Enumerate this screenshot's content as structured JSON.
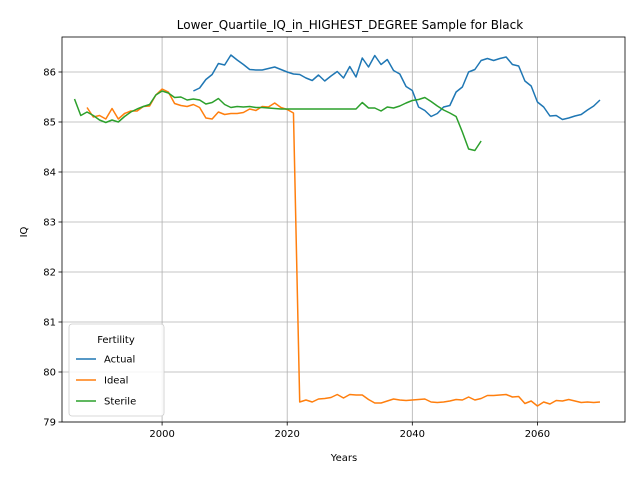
{
  "chart_data": {
    "type": "line",
    "title": "Lower_Quartile_IQ_in_HIGHEST_DEGREE Sample for Black",
    "xlabel": "Years",
    "ylabel": "IQ",
    "xlim": [
      1984,
      2074
    ],
    "ylim": [
      79.0,
      86.7
    ],
    "xticks": [
      2000,
      2020,
      2040,
      2060
    ],
    "yticks": [
      79,
      80,
      81,
      82,
      83,
      84,
      85,
      86
    ],
    "grid": true,
    "legend": {
      "title": "Fertility",
      "placement": "lower-left"
    },
    "series": [
      {
        "name": "Actual",
        "color": "#1f77b4",
        "x": [
          2005,
          2006,
          2007,
          2008,
          2009,
          2010,
          2011,
          2012,
          2013,
          2014,
          2015,
          2016,
          2017,
          2018,
          2019,
          2020,
          2021,
          2022,
          2023,
          2024,
          2025,
          2026,
          2027,
          2028,
          2029,
          2030,
          2031,
          2032,
          2033,
          2034,
          2035,
          2036,
          2037,
          2038,
          2039,
          2040,
          2041,
          2042,
          2043,
          2044,
          2045,
          2046,
          2047,
          2048,
          2049,
          2050,
          2051,
          2052,
          2053,
          2054,
          2055,
          2056,
          2057,
          2058,
          2059,
          2060,
          2061,
          2062,
          2063,
          2064,
          2065,
          2066,
          2067,
          2068,
          2069,
          2070
        ],
        "y": [
          85.62,
          85.68,
          85.85,
          85.95,
          86.17,
          86.14,
          86.34,
          86.24,
          86.15,
          86.05,
          86.04,
          86.04,
          86.07,
          86.1,
          86.05,
          86.0,
          85.96,
          85.95,
          85.88,
          85.83,
          85.94,
          85.82,
          85.92,
          86.01,
          85.88,
          86.11,
          85.9,
          86.28,
          86.1,
          86.33,
          86.15,
          86.25,
          86.03,
          85.96,
          85.71,
          85.63,
          85.3,
          85.23,
          85.11,
          85.17,
          85.3,
          85.33,
          85.6,
          85.7,
          86.0,
          86.05,
          86.23,
          86.27,
          86.23,
          86.27,
          86.3,
          86.15,
          86.12,
          85.82,
          85.72,
          85.4,
          85.3,
          85.12,
          85.13,
          85.05,
          85.08,
          85.12,
          85.15,
          85.24,
          85.32,
          85.44
        ]
      },
      {
        "name": "Ideal",
        "color": "#ff7f0e",
        "x": [
          1988,
          1989,
          1990,
          1991,
          1992,
          1993,
          1994,
          1995,
          1996,
          1997,
          1998,
          1999,
          2000,
          2001,
          2002,
          2003,
          2004,
          2005,
          2006,
          2007,
          2008,
          2009,
          2010,
          2011,
          2012,
          2013,
          2014,
          2015,
          2016,
          2017,
          2018,
          2019,
          2020,
          2021,
          2022,
          2023,
          2024,
          2025,
          2026,
          2027,
          2028,
          2029,
          2030,
          2031,
          2032,
          2033,
          2034,
          2035,
          2036,
          2037,
          2038,
          2039,
          2040,
          2041,
          2042,
          2043,
          2044,
          2045,
          2046,
          2047,
          2048,
          2049,
          2050,
          2051,
          2052,
          2053,
          2054,
          2055,
          2056,
          2057,
          2058,
          2059,
          2060,
          2061,
          2062,
          2063,
          2064,
          2065,
          2066,
          2067,
          2068,
          2069,
          2070
        ],
        "y": [
          85.29,
          85.1,
          85.13,
          85.06,
          85.27,
          85.06,
          85.17,
          85.22,
          85.22,
          85.31,
          85.32,
          85.54,
          85.66,
          85.6,
          85.37,
          85.33,
          85.31,
          85.35,
          85.29,
          85.08,
          85.06,
          85.2,
          85.15,
          85.17,
          85.17,
          85.19,
          85.26,
          85.23,
          85.31,
          85.3,
          85.38,
          85.29,
          85.25,
          85.18,
          79.4,
          79.44,
          79.4,
          79.46,
          79.47,
          79.49,
          79.55,
          79.48,
          79.55,
          79.54,
          79.54,
          79.45,
          79.38,
          79.38,
          79.42,
          79.46,
          79.44,
          79.43,
          79.44,
          79.45,
          79.46,
          79.4,
          79.39,
          79.4,
          79.42,
          79.45,
          79.44,
          79.5,
          79.44,
          79.47,
          79.53,
          79.53,
          79.54,
          79.55,
          79.5,
          79.51,
          79.37,
          79.42,
          79.32,
          79.4,
          79.36,
          79.43,
          79.42,
          79.45,
          79.42,
          79.39,
          79.4,
          79.39,
          79.4
        ]
      },
      {
        "name": "Sterile",
        "color": "#2ca02c",
        "x": [
          1986,
          1987,
          1988,
          1989,
          1990,
          1991,
          1992,
          1993,
          1994,
          1995,
          1996,
          1997,
          1998,
          1999,
          2000,
          2001,
          2002,
          2003,
          2004,
          2005,
          2006,
          2007,
          2008,
          2009,
          2010,
          2011,
          2012,
          2013,
          2014,
          2015,
          2016,
          2017,
          2018,
          2019,
          2020,
          2021,
          2022,
          2023,
          2024,
          2025,
          2026,
          2027,
          2028,
          2029,
          2030,
          2031,
          2032,
          2033,
          2034,
          2035,
          2036,
          2037,
          2038,
          2039,
          2040,
          2041,
          2042,
          2043,
          2044,
          2045,
          2046,
          2047,
          2048,
          2049,
          2050,
          2051
        ],
        "y": [
          85.46,
          85.13,
          85.2,
          85.13,
          85.04,
          84.99,
          85.04,
          85.0,
          85.11,
          85.2,
          85.26,
          85.31,
          85.35,
          85.54,
          85.62,
          85.58,
          85.49,
          85.5,
          85.44,
          85.46,
          85.44,
          85.36,
          85.39,
          85.47,
          85.35,
          85.29,
          85.31,
          85.3,
          85.31,
          85.29,
          85.29,
          85.28,
          85.27,
          85.26,
          85.26,
          85.26,
          85.26,
          85.26,
          85.26,
          85.26,
          85.26,
          85.26,
          85.26,
          85.26,
          85.26,
          85.26,
          85.39,
          85.28,
          85.28,
          85.22,
          85.3,
          85.28,
          85.32,
          85.38,
          85.43,
          85.45,
          85.49,
          85.41,
          85.32,
          85.24,
          85.18,
          85.11,
          84.8,
          84.46,
          84.43,
          84.62
        ]
      }
    ]
  }
}
